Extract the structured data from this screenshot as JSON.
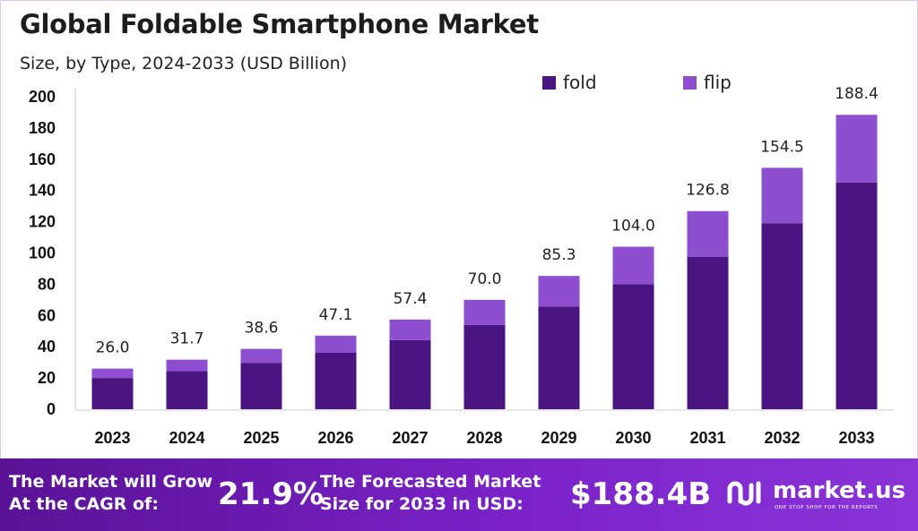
{
  "title": "Global Foldable Smartphone Market",
  "subtitle": "Size, by Type, 2024-2033 (USD Billion)",
  "colors": {
    "fold": "#4a1580",
    "flip": "#8e4ed0",
    "banner": "#6a1ab0"
  },
  "banner": {
    "cagr_label": "The Market will Grow At the CAGR of:",
    "cagr_value": "21.9%",
    "forecast_label": "The Forecasted Market Size for 2033 in USD:",
    "forecast_value": "$188.4B",
    "brand_name": "market.us",
    "brand_tagline": "ONE STOP SHOP FOR THE REPORTS",
    "brand_icon": "market-us-logo-icon"
  },
  "chart_data": {
    "type": "bar",
    "stacked": true,
    "title": "Global Foldable Smartphone Market",
    "subtitle": "Size, by Type, 2024-2033 (USD Billion)",
    "categories": [
      "2023",
      "2024",
      "2025",
      "2026",
      "2027",
      "2028",
      "2029",
      "2030",
      "2031",
      "2032",
      "2033"
    ],
    "series": [
      {
        "name": "fold",
        "values": [
          20.0,
          24.4,
          29.7,
          36.3,
          44.2,
          53.9,
          65.7,
          80.1,
          97.6,
          119.0,
          145.1
        ]
      },
      {
        "name": "flip",
        "values": [
          6.0,
          7.3,
          8.9,
          10.8,
          13.2,
          16.1,
          19.6,
          23.9,
          29.2,
          35.5,
          43.3
        ]
      }
    ],
    "totals": [
      "26.0",
      "31.7",
      "38.6",
      "47.1",
      "57.4",
      "70.0",
      "85.3",
      "104.0",
      "126.8",
      "154.5",
      "188.4"
    ],
    "ylim": [
      0,
      200
    ],
    "yticks": [
      0,
      20,
      40,
      60,
      80,
      100,
      120,
      140,
      160,
      180,
      200
    ],
    "grid": false,
    "legend_position": "top-right"
  }
}
